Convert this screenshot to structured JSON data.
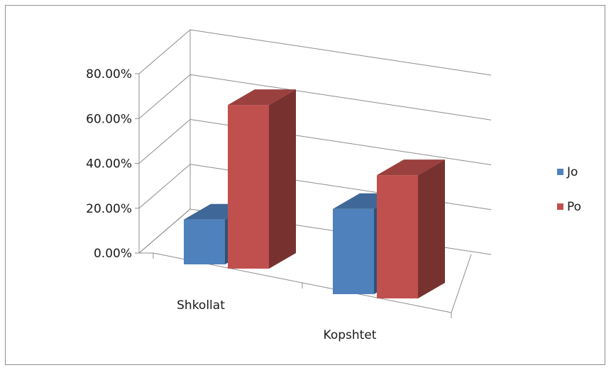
{
  "chart_data": {
    "type": "bar",
    "title": "",
    "xlabel": "",
    "ylabel": "",
    "categories": [
      "Shkollat",
      "Kopshtet"
    ],
    "series": [
      {
        "name": "Jo",
        "values": [
          0.2,
          0.38
        ],
        "color": "#4f81bd"
      },
      {
        "name": "Po",
        "values": [
          0.73,
          0.55
        ],
        "color": "#c0504d"
      }
    ],
    "ylim": [
      0,
      0.8
    ],
    "yticks": [
      "0.00%",
      "20.00%",
      "40.00%",
      "60.00%",
      "80.00%"
    ],
    "grid": true,
    "legend": "right",
    "style": "3d-clustered-column"
  }
}
